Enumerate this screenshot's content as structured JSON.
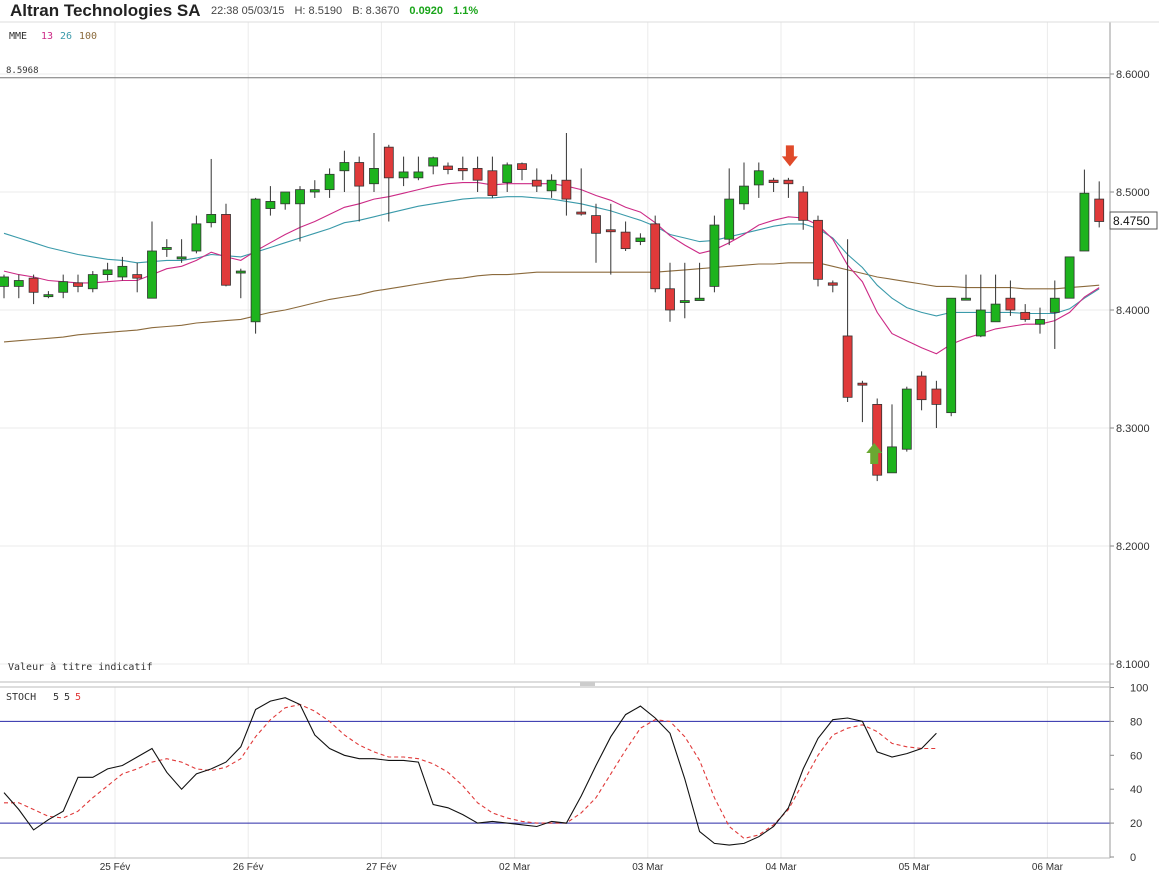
{
  "header": {
    "title": "Altran Technologies SA",
    "datetime": "22:38 05/03/15",
    "high": "H: 8.5190",
    "bid": "B: 8.3670",
    "change": "0.0920",
    "change_pct": "1.1%"
  },
  "colors": {
    "up": "#1db31d",
    "down": "#e03a3a",
    "wick": "#333333",
    "ema13": "#cc2a86",
    "ema26": "#3a9aaa",
    "ema100": "#8b6a3c",
    "stoch_k": "#111111",
    "stoch_d": "#e03a3a",
    "stoch_levels": "#2a2aa8",
    "marker_up": "#6aa832",
    "marker_down": "#e04a2a"
  },
  "chart_data": [
    {
      "type": "candlestick",
      "indicator_label": "MME",
      "ema_periods": [
        "13",
        "26",
        "100"
      ],
      "reference_line_label": "8.5968",
      "reference_line_value": 8.5968,
      "current_price_label": "8.4750",
      "footnote": "Valeur à titre indicatif",
      "ylim": [
        8.095,
        8.655
      ],
      "yticks": [
        "8.6000",
        "8.5000",
        "8.4000",
        "8.3000",
        "8.2000",
        "8.1000"
      ],
      "ytick_values": [
        8.6,
        8.5,
        8.4,
        8.3,
        8.2,
        8.1
      ],
      "xticks": [
        "25 Fév",
        "26 Fév",
        "27 Fév",
        "02 Mar",
        "03 Mar",
        "04 Mar",
        "05 Mar",
        "06 Mar"
      ],
      "xtick_index": [
        7.5,
        16.5,
        25.5,
        34.5,
        43.5,
        52.5,
        61.5,
        70.5
      ],
      "candles": [
        [
          8.42,
          8.428,
          8.41,
          8.43
        ],
        [
          8.42,
          8.425,
          8.41,
          8.43
        ],
        [
          8.427,
          8.415,
          8.405,
          8.43
        ],
        [
          8.413,
          8.413,
          8.41,
          8.416
        ],
        [
          8.415,
          8.424,
          8.41,
          8.43
        ],
        [
          8.423,
          8.42,
          8.415,
          8.43
        ],
        [
          8.418,
          8.43,
          8.415,
          8.433
        ],
        [
          8.43,
          8.434,
          8.425,
          8.44
        ],
        [
          8.428,
          8.437,
          8.425,
          8.445
        ],
        [
          8.43,
          8.427,
          8.415,
          8.44
        ],
        [
          8.41,
          8.45,
          8.41,
          8.475
        ],
        [
          8.452,
          8.453,
          8.445,
          8.46
        ],
        [
          8.445,
          8.445,
          8.44,
          8.46
        ],
        [
          8.45,
          8.473,
          8.448,
          8.48
        ],
        [
          8.474,
          8.481,
          8.47,
          8.528
        ],
        [
          8.481,
          8.421,
          8.42,
          8.49
        ],
        [
          8.433,
          8.433,
          8.41,
          8.435
        ],
        [
          8.39,
          8.494,
          8.38,
          8.495
        ],
        [
          8.486,
          8.492,
          8.48,
          8.505
        ],
        [
          8.49,
          8.5,
          8.485,
          8.5
        ],
        [
          8.49,
          8.502,
          8.458,
          8.505
        ],
        [
          8.5,
          8.502,
          8.495,
          8.51
        ],
        [
          8.502,
          8.515,
          8.495,
          8.52
        ],
        [
          8.518,
          8.525,
          8.5,
          8.535
        ],
        [
          8.525,
          8.505,
          8.475,
          8.53
        ],
        [
          8.507,
          8.52,
          8.5,
          8.55
        ],
        [
          8.538,
          8.512,
          8.475,
          8.54
        ],
        [
          8.512,
          8.517,
          8.505,
          8.53
        ],
        [
          8.512,
          8.517,
          8.51,
          8.53
        ],
        [
          8.522,
          8.529,
          8.515,
          8.53
        ],
        [
          8.522,
          8.519,
          8.515,
          8.525
        ],
        [
          8.52,
          8.518,
          8.51,
          8.53
        ],
        [
          8.52,
          8.51,
          8.5,
          8.53
        ],
        [
          8.518,
          8.497,
          8.495,
          8.53
        ],
        [
          8.508,
          8.523,
          8.5,
          8.525
        ],
        [
          8.524,
          8.519,
          8.51,
          8.525
        ],
        [
          8.51,
          8.505,
          8.5,
          8.52
        ],
        [
          8.501,
          8.51,
          8.495,
          8.515
        ],
        [
          8.51,
          8.494,
          8.48,
          8.55
        ],
        [
          8.483,
          8.482,
          8.48,
          8.52
        ],
        [
          8.48,
          8.465,
          8.44,
          8.49
        ],
        [
          8.468,
          8.467,
          8.43,
          8.49
        ],
        [
          8.466,
          8.452,
          8.45,
          8.475
        ],
        [
          8.458,
          8.461,
          8.455,
          8.465
        ],
        [
          8.473,
          8.418,
          8.415,
          8.48
        ],
        [
          8.418,
          8.4,
          8.39,
          8.44
        ],
        [
          8.408,
          8.408,
          8.393,
          8.44
        ],
        [
          8.408,
          8.41,
          8.408,
          8.44
        ],
        [
          8.42,
          8.472,
          8.415,
          8.48
        ],
        [
          8.46,
          8.494,
          8.455,
          8.52
        ],
        [
          8.49,
          8.505,
          8.485,
          8.525
        ],
        [
          8.506,
          8.518,
          8.495,
          8.525
        ],
        [
          8.51,
          8.508,
          8.5,
          8.512
        ],
        [
          8.51,
          8.507,
          8.495,
          8.512
        ],
        [
          8.5,
          8.476,
          8.468,
          8.505
        ],
        [
          8.476,
          8.426,
          8.42,
          8.48
        ],
        [
          8.423,
          8.421,
          8.415,
          8.425
        ],
        [
          8.378,
          8.326,
          8.322,
          8.46
        ],
        [
          8.338,
          8.337,
          8.305,
          8.34
        ],
        [
          8.32,
          8.26,
          8.255,
          8.325
        ],
        [
          8.262,
          8.284,
          8.262,
          8.32
        ],
        [
          8.282,
          8.333,
          8.28,
          8.335
        ],
        [
          8.344,
          8.324,
          8.315,
          8.348
        ],
        [
          8.333,
          8.32,
          8.3,
          8.34
        ],
        [
          8.313,
          8.41,
          8.31,
          8.41
        ],
        [
          8.41,
          8.41,
          8.41,
          8.43
        ],
        [
          8.378,
          8.4,
          8.377,
          8.43
        ],
        [
          8.39,
          8.405,
          8.39,
          8.43
        ],
        [
          8.41,
          8.4,
          8.395,
          8.425
        ],
        [
          8.398,
          8.392,
          8.39,
          8.405
        ],
        [
          8.388,
          8.392,
          8.38,
          8.402
        ],
        [
          8.398,
          8.41,
          8.367,
          8.425
        ],
        [
          8.41,
          8.445,
          8.41,
          8.445
        ],
        [
          8.45,
          8.499,
          8.45,
          8.519
        ],
        [
          8.494,
          8.475,
          8.47,
          8.509
        ]
      ],
      "ema13": [
        8.433,
        8.43,
        8.428,
        8.425,
        8.424,
        8.423,
        8.423,
        8.424,
        8.425,
        8.425,
        8.43,
        8.435,
        8.437,
        8.442,
        8.449,
        8.445,
        8.442,
        8.45,
        8.457,
        8.464,
        8.47,
        8.475,
        8.481,
        8.487,
        8.49,
        8.494,
        8.496,
        8.499,
        8.502,
        8.505,
        8.507,
        8.508,
        8.508,
        8.506,
        8.507,
        8.507,
        8.507,
        8.507,
        8.505,
        8.502,
        8.497,
        8.493,
        8.487,
        8.483,
        8.474,
        8.463,
        8.455,
        8.448,
        8.451,
        8.457,
        8.464,
        8.472,
        8.476,
        8.479,
        8.478,
        8.472,
        8.46,
        8.438,
        8.424,
        8.398,
        8.38,
        8.374,
        8.368,
        8.363,
        8.371,
        8.376,
        8.38,
        8.384,
        8.386,
        8.388,
        8.388,
        8.391,
        8.398,
        8.411,
        8.419
      ],
      "ema26": [
        8.465,
        8.461,
        8.457,
        8.453,
        8.45,
        8.447,
        8.445,
        8.443,
        8.442,
        8.44,
        8.441,
        8.442,
        8.442,
        8.444,
        8.447,
        8.446,
        8.445,
        8.449,
        8.453,
        8.457,
        8.461,
        8.465,
        8.469,
        8.474,
        8.476,
        8.479,
        8.482,
        8.485,
        8.488,
        8.49,
        8.492,
        8.494,
        8.495,
        8.495,
        8.496,
        8.496,
        8.495,
        8.494,
        8.492,
        8.49,
        8.487,
        8.484,
        8.48,
        8.476,
        8.471,
        8.464,
        8.461,
        8.458,
        8.459,
        8.462,
        8.465,
        8.468,
        8.471,
        8.473,
        8.473,
        8.469,
        8.461,
        8.447,
        8.436,
        8.421,
        8.41,
        8.402,
        8.398,
        8.395,
        8.398,
        8.398,
        8.398,
        8.398,
        8.398,
        8.397,
        8.397,
        8.397,
        8.401,
        8.41,
        8.418
      ],
      "ema100": [
        8.373,
        8.374,
        8.375,
        8.376,
        8.377,
        8.379,
        8.38,
        8.381,
        8.382,
        8.383,
        8.385,
        8.386,
        8.387,
        8.389,
        8.39,
        8.391,
        8.392,
        8.395,
        8.398,
        8.4,
        8.403,
        8.406,
        8.409,
        8.411,
        8.413,
        8.416,
        8.418,
        8.42,
        8.422,
        8.424,
        8.426,
        8.427,
        8.429,
        8.43,
        8.43,
        8.431,
        8.432,
        8.432,
        8.432,
        8.432,
        8.432,
        8.432,
        8.432,
        8.432,
        8.432,
        8.433,
        8.434,
        8.435,
        8.436,
        8.437,
        8.438,
        8.439,
        8.439,
        8.44,
        8.44,
        8.44,
        8.437,
        8.434,
        8.431,
        8.428,
        8.426,
        8.424,
        8.422,
        8.42,
        8.42,
        8.419,
        8.419,
        8.419,
        8.419,
        8.418,
        8.418,
        8.418,
        8.419,
        8.42,
        8.421
      ],
      "markers": [
        {
          "direction": "up",
          "index": 58.8,
          "value": 8.278
        },
        {
          "direction": "down",
          "index": 53.1,
          "value": 8.531
        }
      ]
    },
    {
      "type": "line",
      "indicator_label": "STOCH",
      "params": [
        "5",
        "5",
        "5"
      ],
      "ylim": [
        0,
        100
      ],
      "yticks": [
        "100",
        "80",
        "60",
        "40",
        "20",
        "0"
      ],
      "ytick_values": [
        100,
        80,
        60,
        40,
        20,
        0
      ],
      "levels": [
        80,
        20
      ],
      "k": [
        38,
        28,
        16,
        22,
        27,
        47,
        47,
        52,
        54,
        59,
        64,
        50,
        40,
        49,
        52,
        56,
        65,
        87,
        92,
        94,
        90,
        72,
        64,
        60,
        58,
        58,
        57,
        57,
        56,
        31,
        29,
        25,
        20,
        21,
        20,
        19,
        18,
        21,
        20,
        36,
        54,
        71,
        84,
        89,
        82,
        73,
        46,
        15,
        8,
        7,
        8,
        12,
        18,
        29,
        52,
        70,
        81,
        82,
        80,
        62,
        59,
        61,
        64,
        73
      ],
      "d": [
        32,
        32,
        28,
        24,
        23,
        27,
        35,
        42,
        49,
        52,
        56,
        58,
        56,
        52,
        51,
        53,
        58,
        71,
        81,
        88,
        90,
        86,
        80,
        72,
        66,
        62,
        59,
        59,
        58,
        55,
        50,
        42,
        32,
        26,
        23,
        21,
        20,
        20,
        20,
        26,
        35,
        49,
        63,
        76,
        81,
        80,
        71,
        57,
        35,
        18,
        11,
        13,
        19,
        28,
        44,
        60,
        72,
        76,
        78,
        74,
        67,
        65,
        64,
        64
      ]
    }
  ]
}
